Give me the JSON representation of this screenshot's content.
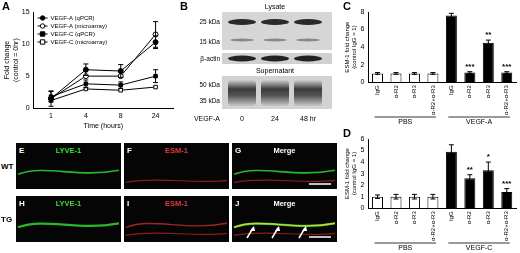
{
  "chart_data": [
    {
      "type": "line",
      "label": "A",
      "xlabel": "Time (hours)",
      "ylabel": "Fold change (control = 0hr)",
      "categories": [
        "1",
        "4",
        "8",
        "24"
      ],
      "series": [
        {
          "name": "VEGF-A (qPCR)",
          "color": "#000000",
          "marker": "circle",
          "line_style": "solid",
          "values": [
            1.5,
            6.0,
            5.8,
            10.3
          ],
          "errors": [
            1.2,
            0.9,
            1.0,
            1.0
          ]
        },
        {
          "name": "VEGF-A (microarray)",
          "color": "#000000",
          "marker": "open_circle",
          "line_style": "solid",
          "values": [
            1.5,
            5.0,
            5.0,
            11.5
          ],
          "errors": [
            null,
            null,
            null,
            2.0
          ]
        },
        {
          "name": "VEGF-C (qPCR)",
          "color": "#000000",
          "marker": "square",
          "line_style": "solid",
          "values": [
            1.8,
            3.8,
            3.6,
            5.0
          ],
          "errors": [
            0.8,
            0.6,
            0.5,
            1.0
          ]
        },
        {
          "name": "VEGF-C (microarray)",
          "color": "#000000",
          "marker": "open_square",
          "line_style": "solid",
          "values": [
            1.2,
            3.0,
            2.8,
            3.3
          ],
          "errors": [
            null,
            null,
            null,
            null
          ]
        }
      ],
      "ylim": [
        0,
        15
      ],
      "yticks": [
        0,
        5,
        10,
        15
      ],
      "grid": false,
      "legend": "upper left"
    },
    {
      "type": "bar",
      "label": "C",
      "ylabel": "ESM-1 fold change (control IgG = 1)",
      "categories": [
        "IgG",
        "α-R2",
        "α-R3",
        "α-R2+α-R3",
        "IgG",
        "α-R2",
        "α-R3",
        "α-R2+α-R3"
      ],
      "groups": [
        "PBS",
        "VEGF-A"
      ],
      "values": [
        1.0,
        1.0,
        1.0,
        1.0,
        7.6,
        1.1,
        4.5,
        1.1
      ],
      "errors": [
        0.1,
        0.1,
        0.1,
        0.1,
        0.25,
        0.1,
        0.3,
        0.1
      ],
      "significance": [
        null,
        null,
        null,
        null,
        null,
        "***",
        "**",
        "***"
      ],
      "colors": [
        "#ffffff",
        "#ffffff",
        "#ffffff",
        "#ffffff",
        "#000000",
        "#000000",
        "#000000",
        "#000000"
      ],
      "ylim": [
        0,
        8
      ],
      "yticks": [
        0,
        2,
        4,
        6,
        8
      ],
      "grid": false
    },
    {
      "type": "bar",
      "label": "D",
      "ylabel": "ESM-1 fold change (control IgG = 1)",
      "categories": [
        "IgG",
        "α-R2",
        "α-R3",
        "α-R2+α-R3",
        "IgG",
        "α-R2",
        "α-R3",
        "α-R2+α-R3"
      ],
      "groups": [
        "PBS",
        "VEGF-C"
      ],
      "values": [
        1.0,
        1.0,
        1.0,
        1.0,
        4.9,
        2.6,
        3.3,
        1.4
      ],
      "errors": [
        0.15,
        0.2,
        0.2,
        0.2,
        0.6,
        0.3,
        0.7,
        0.3
      ],
      "significance": [
        null,
        null,
        null,
        null,
        null,
        "**",
        "*",
        "***"
      ],
      "colors": [
        "#ffffff",
        "#ffffff",
        "#ffffff",
        "#ffffff",
        "#000000",
        "#000000",
        "#000000",
        "#000000"
      ],
      "ylim": [
        0,
        6
      ],
      "yticks": [
        0,
        1,
        2,
        3,
        4,
        5,
        6
      ],
      "grid": false
    }
  ],
  "panels": {
    "blot": {
      "label": "B",
      "lysate": "Lysate",
      "markers_top": [
        "25 kDa",
        "15 kDa"
      ],
      "loading": "β-actin",
      "supernatant": "Supernatant",
      "markers_bottom": [
        "50 kDa",
        "35 kDa"
      ],
      "treatment": "VEGF-A",
      "lanes": [
        "0",
        "24",
        "48 hr"
      ]
    },
    "micrographs": {
      "rows": [
        "WT",
        "TG"
      ],
      "columns": [
        "LYVE-1",
        "ESM-1",
        "Merge"
      ],
      "labels": [
        [
          "E",
          "F",
          "G"
        ],
        [
          "H",
          "I",
          "J"
        ]
      ]
    }
  }
}
